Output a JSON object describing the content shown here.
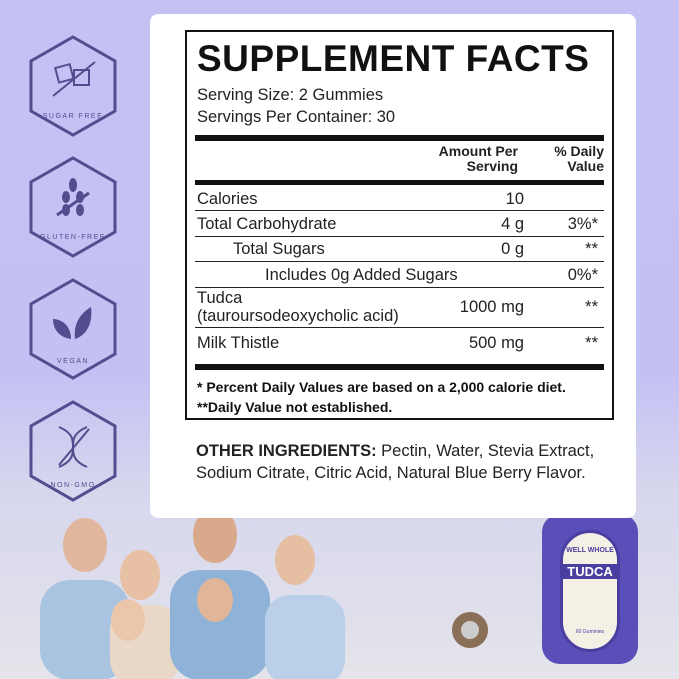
{
  "badges": [
    {
      "label": "SUGAR FREE",
      "icon": "sugar-cubes-icon"
    },
    {
      "label": "GLUTEN-FREE",
      "icon": "wheat-crossed-icon"
    },
    {
      "label": "VEGAN",
      "icon": "leaves-icon"
    },
    {
      "label": "NON-GMO",
      "icon": "dna-crossed-icon"
    }
  ],
  "colors": {
    "background": "#c4c2f5",
    "badge": "#514d8f",
    "text": "#111111"
  },
  "facts": {
    "title": "SUPPLEMENT FACTS",
    "serving_size": "Serving Size: 2 Gummies",
    "servings_per_container": "Servings Per Container: 30",
    "header_amount_1": "Amount Per",
    "header_amount_2": "Serving",
    "header_dv_1": "% Daily",
    "header_dv_2": "Value",
    "rows": [
      {
        "name": "Calories",
        "amount": "10",
        "dv": ""
      },
      {
        "name": "Total Carbohydrate",
        "amount": "4 g",
        "dv": "3%*"
      },
      {
        "name": "Total Sugars",
        "amount": "0 g",
        "dv": "**"
      },
      {
        "name": "Includes 0g Added Sugars",
        "amount": "",
        "dv": "0%*"
      },
      {
        "name": "Tudca",
        "name2": "(tauroursodeoxycholic acid)",
        "amount": "1000 mg",
        "dv": "**"
      },
      {
        "name": "Milk Thistle",
        "amount": "500 mg",
        "dv": "**"
      }
    ],
    "footnote1": "* Percent Daily Values are based on a 2,000 calorie diet.",
    "footnote2": "**Daily Value not established."
  },
  "other": {
    "label": "OTHER INGREDIENTS:",
    "text": " Pectin, Water, Stevia Extract, Sodium Citrate, Citric Acid, Natural Blue Berry Flavor."
  },
  "bottle": {
    "brand": "WELL WHOLE",
    "product": "TUDCA",
    "count": "60 Gummies"
  }
}
